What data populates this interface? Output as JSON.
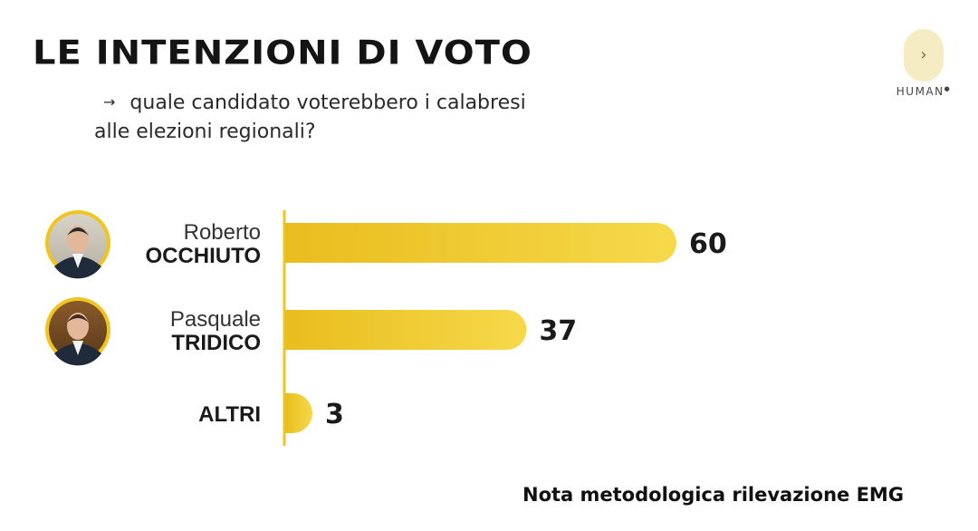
{
  "header": {
    "title": "LE INTENZIONI DI VOTO",
    "subtitle_line1": "quale candidato voterebbero i calabresi",
    "subtitle_line2": "alle elezioni regionali?"
  },
  "logo": {
    "text": "HUMAN"
  },
  "footer": {
    "note": "Nota metodologica rilevazione EMG"
  },
  "colors": {
    "bar": "#f0c520",
    "bar_light": "#f5d95a",
    "axis": "#f0c520"
  },
  "chart_data": {
    "type": "bar",
    "orientation": "horizontal",
    "categories": [
      {
        "first": "Roberto",
        "last": "OCCHIUTO",
        "photo": "avatar-occhiuto"
      },
      {
        "first": "Pasquale",
        "last": "TRIDICO",
        "photo": "avatar-tridico"
      },
      {
        "first": "",
        "last": "ALTRI",
        "photo": ""
      }
    ],
    "values": [
      60,
      37,
      3
    ],
    "xlim": [
      0,
      100
    ],
    "grid": false
  }
}
